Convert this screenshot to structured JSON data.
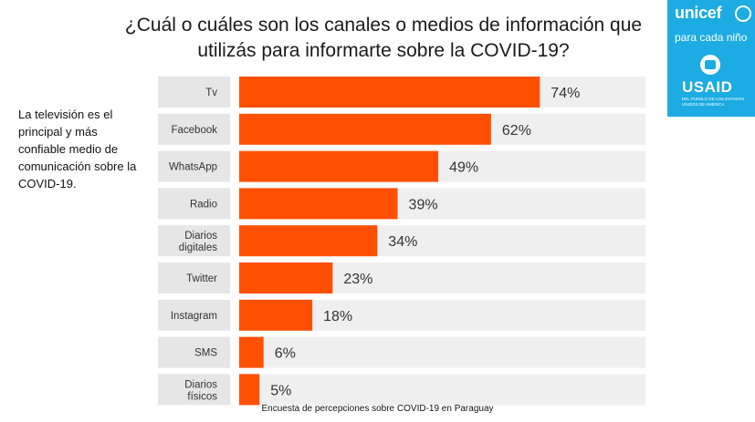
{
  "title": "¿Cuál o cuáles son los canales o medios de información que utilizás para informarte sobre la COVID-19?",
  "note": "La televisión es el principal y más confiable medio de comunicación sobre la COVID-19.",
  "source": "Encuesta de percepciones sobre COVID-19 en Paraguay",
  "logo": {
    "unicef": "unicef",
    "tagline": "para cada niño",
    "usaid": "USAID",
    "usaid_sub": "DEL PUEBLO DE LOS ESTADOS UNIDOS DE AMÉRICA"
  },
  "colors": {
    "bar": "#fe5000",
    "track": "#efefef",
    "label_bg": "#e6e6e6",
    "logo_bg": "#1cabe2"
  },
  "chart_data": {
    "type": "bar",
    "orientation": "horizontal",
    "categories": [
      "Tv",
      "Facebook",
      "WhatsApp",
      "Radio",
      "Diarios digitales",
      "Twitter",
      "Instagram",
      "SMS",
      "Diarios físicos"
    ],
    "values": [
      74,
      62,
      49,
      39,
      34,
      23,
      18,
      6,
      5
    ],
    "value_labels": [
      "74%",
      "62%",
      "49%",
      "39%",
      "34%",
      "23%",
      "18%",
      "6%",
      "5%"
    ],
    "unit": "%",
    "xlim": [
      0,
      100
    ],
    "title": "¿Cuál o cuáles son los canales o medios de información que utilizás para informarte sobre la COVID-19?"
  }
}
